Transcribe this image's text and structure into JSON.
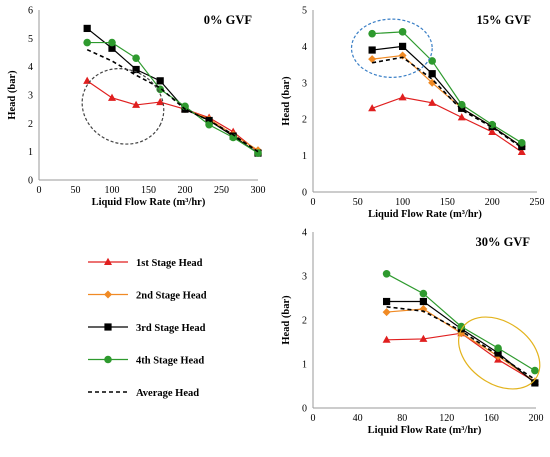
{
  "legend": {
    "items": [
      {
        "series": "1st Stage Head",
        "color": "#e01f1f",
        "marker": "triangle",
        "dash": false
      },
      {
        "series": "2nd Stage Head",
        "color": "#f08a24",
        "marker": "diamond",
        "dash": false
      },
      {
        "series": "3rd Stage Head",
        "color": "#000000",
        "marker": "square",
        "dash": false
      },
      {
        "series": "4th Stage Head",
        "color": "#2e9a2e",
        "marker": "circle",
        "dash": false
      },
      {
        "series": "Average Head",
        "color": "#000000",
        "marker": "none",
        "dash": true
      }
    ]
  },
  "chart_data": [
    {
      "type": "line",
      "title": "0% GVF",
      "xlabel": "Liquid Flow Rate (m³/hr)",
      "ylabel": "Head (bar)",
      "xlim": [
        0,
        300
      ],
      "ylim": [
        0,
        6
      ],
      "xticks": [
        0,
        50,
        100,
        150,
        200,
        250,
        300
      ],
      "yticks": [
        0,
        1,
        2,
        3,
        4,
        5,
        6
      ],
      "grid": false,
      "x": [
        66,
        100,
        133,
        166,
        200,
        233,
        266,
        300
      ],
      "series": [
        {
          "name": "1st Stage Head",
          "values": [
            3.5,
            2.9,
            2.65,
            2.75,
            2.5,
            2.2,
            1.7,
            1.0
          ]
        },
        {
          "name": "2nd Stage Head",
          "values": [
            null,
            null,
            null,
            null,
            2.5,
            2.15,
            1.6,
            1.05
          ]
        },
        {
          "name": "3rd Stage Head",
          "values": [
            5.35,
            4.65,
            3.9,
            3.5,
            2.5,
            2.1,
            1.55,
            0.95
          ]
        },
        {
          "name": "4th Stage Head",
          "values": [
            4.85,
            4.85,
            4.3,
            3.2,
            2.6,
            1.95,
            1.5,
            0.95
          ]
        },
        {
          "name": "Average Head",
          "values": [
            4.6,
            4.2,
            3.7,
            3.25,
            2.5,
            2.1,
            1.6,
            1.0
          ]
        }
      ],
      "ellipse": {
        "cx": 115,
        "cy": 2.6,
        "rx": 57,
        "ry": 1.3,
        "angle": 25,
        "color": "#444444"
      }
    },
    {
      "type": "line",
      "title": "15% GVF",
      "xlabel": "Liquid Flow Rate (m³/hr)",
      "ylabel": "Head (bar)",
      "xlim": [
        0,
        250
      ],
      "ylim": [
        0,
        5
      ],
      "xticks": [
        0,
        50,
        100,
        150,
        200,
        250
      ],
      "yticks": [
        0,
        1,
        2,
        3,
        4,
        5
      ],
      "grid": false,
      "x": [
        66,
        100,
        133,
        166,
        200,
        233
      ],
      "series": [
        {
          "name": "1st Stage Head",
          "values": [
            2.3,
            2.6,
            2.45,
            2.05,
            1.65,
            1.1
          ]
        },
        {
          "name": "2nd Stage Head",
          "values": [
            3.65,
            3.75,
            3.0,
            2.3,
            1.8,
            1.25
          ]
        },
        {
          "name": "3rd Stage Head",
          "values": [
            3.9,
            4.0,
            3.25,
            2.3,
            1.8,
            1.25
          ]
        },
        {
          "name": "4th Stage Head",
          "values": [
            4.35,
            4.4,
            3.6,
            2.4,
            1.85,
            1.35
          ]
        },
        {
          "name": "Average Head",
          "values": [
            3.55,
            3.7,
            3.1,
            2.25,
            1.78,
            1.22
          ]
        }
      ],
      "ellipse": {
        "cx": 88,
        "cy": 3.95,
        "rx": 45,
        "ry": 0.8,
        "angle": 0,
        "color": "#3a7fc6"
      }
    },
    {
      "type": "line",
      "title": "30% GVF",
      "xlabel": "Liquid Flow Rate (m³/hr)",
      "ylabel": "Head (bar)",
      "xlim": [
        0,
        200
      ],
      "ylim": [
        0,
        4
      ],
      "xticks": [
        0,
        40,
        80,
        120,
        160,
        200
      ],
      "yticks": [
        0,
        1,
        2,
        3,
        4
      ],
      "grid": false,
      "x": [
        66,
        99,
        133,
        166,
        199
      ],
      "series": [
        {
          "name": "1st Stage Head",
          "values": [
            1.55,
            1.57,
            1.7,
            1.1,
            0.6
          ]
        },
        {
          "name": "2nd Stage Head",
          "values": [
            2.18,
            2.25,
            1.7,
            1.18,
            0.6
          ]
        },
        {
          "name": "3rd Stage Head",
          "values": [
            2.42,
            2.42,
            1.8,
            1.25,
            0.57
          ]
        },
        {
          "name": "4th Stage Head",
          "values": [
            3.05,
            2.6,
            1.85,
            1.36,
            0.85
          ]
        },
        {
          "name": "Average Head",
          "values": [
            2.3,
            2.2,
            1.75,
            1.2,
            0.65
          ]
        }
      ],
      "ellipse": {
        "cx": 167,
        "cy": 1.25,
        "rx": 40,
        "ry": 0.7,
        "angle": 35,
        "color": "#e3b31d"
      }
    }
  ]
}
